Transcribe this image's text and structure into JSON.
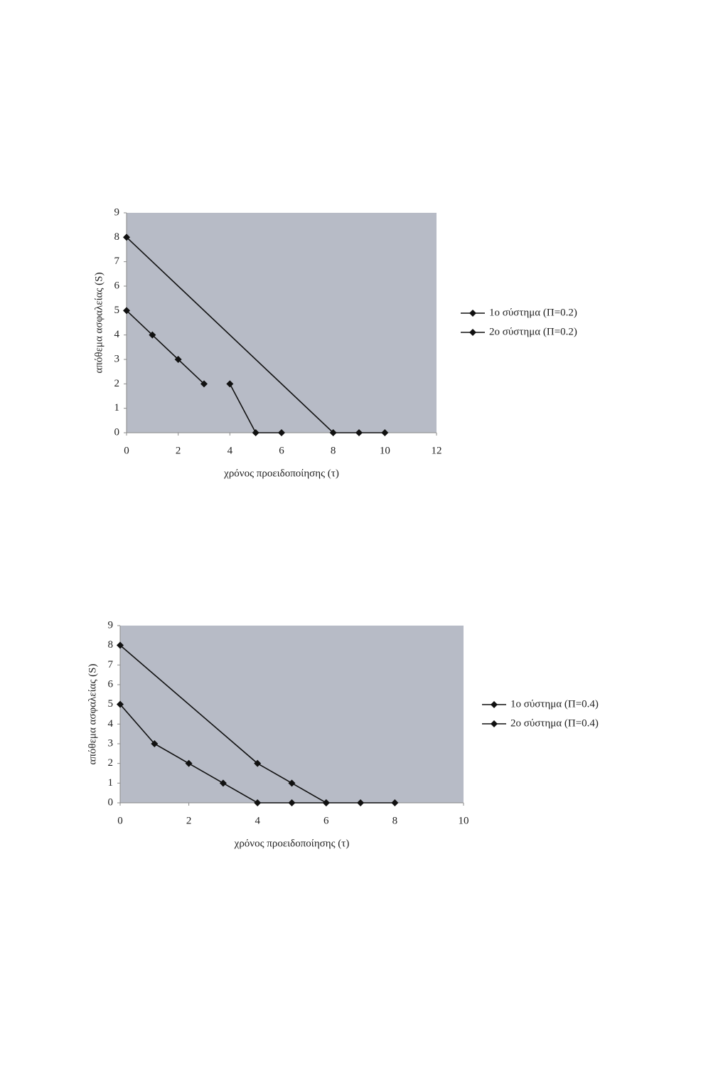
{
  "chart_data": [
    {
      "type": "line",
      "xlabel": "χρόνος προειδοποίησης (τ)",
      "ylabel": "απόθεμα ασφαλείας (S)",
      "xlim": [
        0,
        12
      ],
      "xticks": [
        0,
        2,
        4,
        6,
        8,
        10,
        12
      ],
      "ylim": [
        0,
        9
      ],
      "yticks": [
        0,
        1,
        2,
        3,
        4,
        5,
        6,
        7,
        8,
        9
      ],
      "grid": false,
      "legend": "right",
      "plot_color": "#b7bbc6",
      "series": [
        {
          "name": "1ο σύστημα (Π=0.2)",
          "color": "#111111",
          "x": [
            0,
            8,
            9,
            10
          ],
          "values": [
            8,
            0,
            0,
            0
          ]
        },
        {
          "name": "2ο σύστημα (Π=0.2)",
          "color": "#111111",
          "x": [
            0,
            1,
            2,
            3,
            null,
            4,
            5,
            6
          ],
          "values": [
            5,
            4,
            3,
            2,
            null,
            2,
            0,
            0
          ]
        }
      ]
    },
    {
      "type": "line",
      "xlabel": "χρόνος προειδοποίησης (τ)",
      "ylabel": "απόθεμα ασφαλείας (S)",
      "xlim": [
        0,
        10
      ],
      "xticks": [
        0,
        2,
        4,
        6,
        8,
        10
      ],
      "ylim": [
        0,
        9
      ],
      "yticks": [
        0,
        1,
        2,
        3,
        4,
        5,
        6,
        7,
        8,
        9
      ],
      "grid": false,
      "legend": "right",
      "plot_color": "#b7bbc6",
      "series": [
        {
          "name": "1ο σύστημα (Π=0.4)",
          "color": "#111111",
          "x": [
            0,
            4,
            5,
            6,
            7,
            8
          ],
          "values": [
            8,
            2,
            1,
            0,
            0,
            0
          ]
        },
        {
          "name": "2ο σύστημα (Π=0.4)",
          "color": "#111111",
          "x": [
            0,
            1,
            2,
            3,
            4,
            5,
            6
          ],
          "values": [
            5,
            3,
            2,
            1,
            0,
            0,
            0
          ]
        }
      ]
    }
  ]
}
